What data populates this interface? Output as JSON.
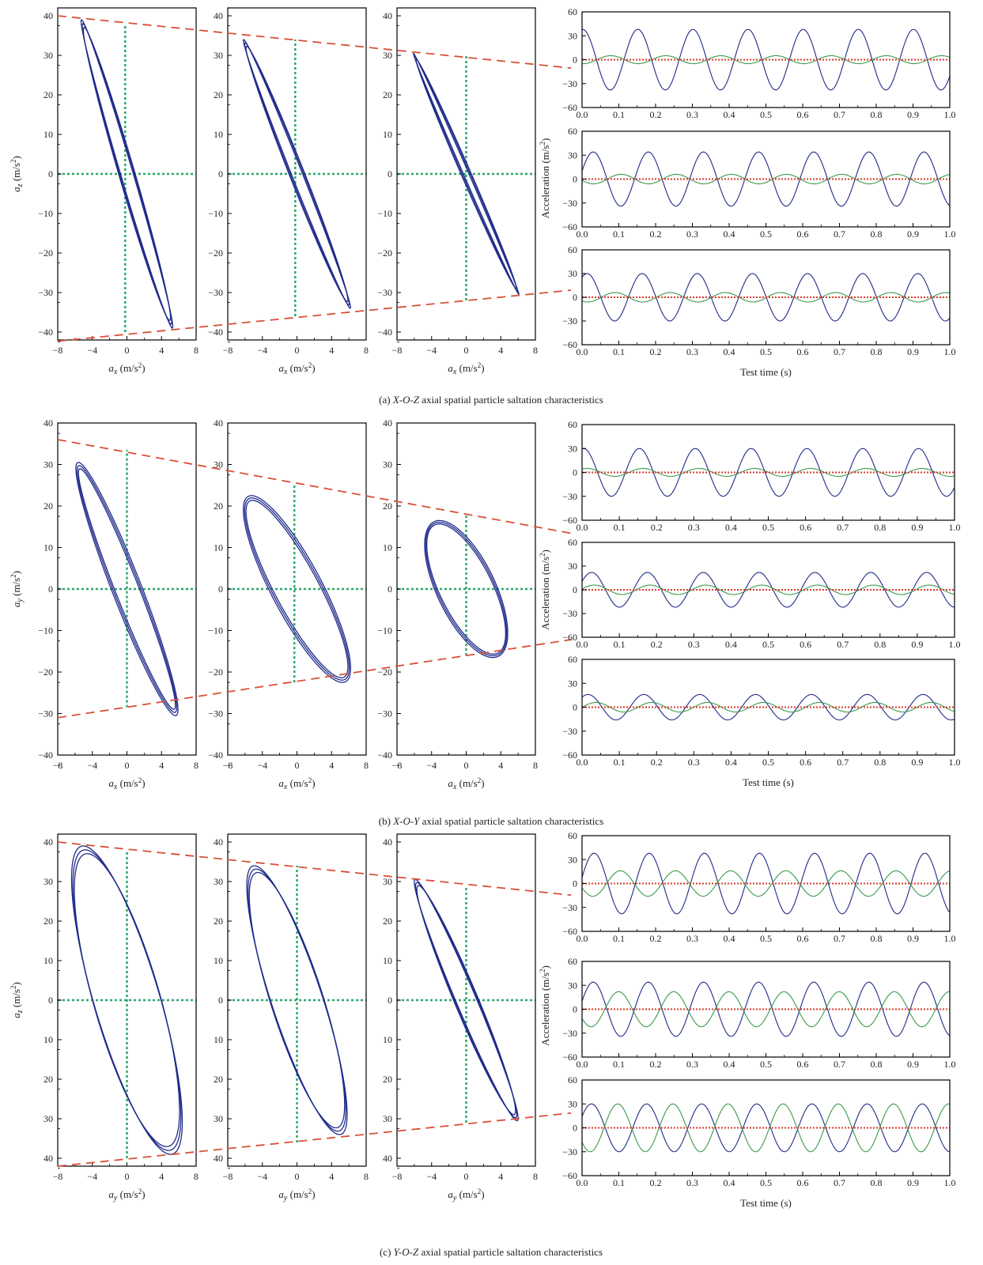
{
  "figure": {
    "captions": [
      "(a) X-O-Z axial spatial particle saltation characteristics",
      "(b) X-O-Y axial spatial particle saltation characteristics",
      "(c) Y-O-Z axial spatial particle saltation characteristics"
    ],
    "caption_parts": [
      {
        "prefix": "(a) ",
        "axes": "X-O-Z",
        "suffix": " axial spatial particle saltation characteristics"
      },
      {
        "prefix": "(b) ",
        "axes": "X-O-Y",
        "suffix": " axial spatial particle saltation characteristics"
      },
      {
        "prefix": "(c) ",
        "axes": "Y-O-Z",
        "suffix": " axial spatial particle saltation characteristics"
      }
    ],
    "colors": {
      "trajectory": "#1f2b8a",
      "envelope": "#d9503a",
      "zero_grid": "#2aa86a",
      "series_green": "#3a9a4a",
      "series_red": "#d43a2a",
      "axis": "#000000"
    }
  },
  "chart_data": [
    {
      "panel": "a",
      "type": "scatter",
      "subtype": "phase-trajectory",
      "x_axis": "a_x",
      "y_axis": "a_z",
      "xlabel": "ax (m/s2)",
      "ylabel": "az (m/s2)",
      "xlim": [
        -8,
        8
      ],
      "ylim": [
        -42,
        42
      ],
      "xticks": [
        -8,
        -4,
        0,
        4,
        8
      ],
      "yticks": [
        40,
        30,
        20,
        10,
        0,
        -10,
        -20,
        -30,
        -40
      ],
      "subplots": [
        {
          "show_ylabel": true,
          "x_amp": 5.3,
          "y_amp": 39,
          "phase_deg": 8,
          "green_h": [
            [
              -8,
              0
            ],
            [
              8,
              0
            ]
          ],
          "green_v": [
            [
              -0.2,
              -40
            ],
            [
              -0.2,
              38
            ]
          ]
        },
        {
          "show_ylabel": false,
          "x_amp": 6.2,
          "y_amp": 34,
          "phase_deg": 6,
          "green_h": [
            [
              -8,
              0
            ],
            [
              8,
              0
            ]
          ],
          "green_v": [
            [
              -0.2,
              -36
            ],
            [
              -0.2,
              34
            ]
          ]
        },
        {
          "show_ylabel": false,
          "x_amp": 6.1,
          "y_amp": 30.5,
          "phase_deg": 3,
          "green_h": [
            [
              -8,
              0
            ],
            [
              8,
              0
            ]
          ],
          "green_v": [
            [
              0,
              -32
            ],
            [
              0,
              30
            ]
          ]
        }
      ],
      "envelope_lines": [
        {
          "points": [
            [
              -8,
              40
            ],
            [
              8,
              27.7
            ]
          ],
          "note": "upper envelope spanning subplots 1-3"
        },
        {
          "points": [
            [
              -8,
              -42.3
            ],
            [
              8,
              -30.3
            ]
          ],
          "note": "lower envelope spanning subplots 1-3"
        }
      ]
    },
    {
      "panel": "a",
      "type": "line",
      "subtype": "time-series",
      "xlabel": "Test time (s)",
      "ylabel": "Acceleration (m/s2)",
      "xlim": [
        0,
        1
      ],
      "ylim": [
        -60,
        60
      ],
      "xticks": [
        0,
        0.1,
        0.2,
        0.3,
        0.4,
        0.5,
        0.6,
        0.7,
        0.8,
        0.9,
        1.0
      ],
      "yticks": [
        60,
        30,
        0,
        -30,
        -60
      ],
      "subplots": [
        {
          "freq_hz": 6.67,
          "series": [
            {
              "color": "blue",
              "amplitude": 38,
              "phase": 1.5
            },
            {
              "color": "green",
              "amplitude": 5,
              "phase": -1.7
            },
            {
              "color": "red",
              "amplitude": 0,
              "phase": 0
            }
          ]
        },
        {
          "freq_hz": 6.67,
          "series": [
            {
              "color": "blue",
              "amplitude": 34,
              "phase": 0.3
            },
            {
              "color": "green",
              "amplitude": 6,
              "phase": 3.4
            },
            {
              "color": "red",
              "amplitude": 0,
              "phase": 0
            }
          ]
        },
        {
          "freq_hz": 6.67,
          "series": [
            {
              "color": "blue",
              "amplitude": 30,
              "phase": 1.0
            },
            {
              "color": "green",
              "amplitude": 6,
              "phase": -2.2
            },
            {
              "color": "red",
              "amplitude": 0,
              "phase": 0
            }
          ]
        }
      ]
    },
    {
      "panel": "b",
      "type": "scatter",
      "subtype": "phase-trajectory",
      "x_axis": "a_x",
      "y_axis": "a_y",
      "xlabel": "ax (m/s2)",
      "ylabel": "ay (m/s2)",
      "xlim": [
        -8,
        8
      ],
      "ylim": [
        -40,
        40
      ],
      "xticks": [
        -8,
        -4,
        0,
        4,
        8
      ],
      "yticks": [
        40,
        30,
        20,
        10,
        0,
        -10,
        -20,
        -30,
        -40
      ],
      "subplots": [
        {
          "show_ylabel": true,
          "x_amp": 5.9,
          "y_amp": 30.5,
          "phase_deg": -18,
          "green_h": [
            [
              -8,
              0
            ],
            [
              8,
              0
            ]
          ],
          "green_v": [
            [
              0,
              -28.5
            ],
            [
              0,
              33.5
            ]
          ]
        },
        {
          "show_ylabel": false,
          "x_amp": 6.2,
          "y_amp": 22.5,
          "phase_deg": -32,
          "green_h": [
            [
              -8,
              0
            ],
            [
              8,
              0
            ]
          ],
          "green_v": [
            [
              -0.3,
              -22.5
            ],
            [
              -0.3,
              25.5
            ]
          ]
        },
        {
          "show_ylabel": false,
          "x_amp": 4.8,
          "y_amp": 16.5,
          "phase_deg": -50,
          "green_h": [
            [
              -8,
              0
            ],
            [
              8,
              0
            ]
          ],
          "green_v": [
            [
              0,
              -16
            ],
            [
              0,
              18
            ]
          ]
        }
      ],
      "envelope_lines": [
        {
          "points": [
            [
              -8,
              36
            ],
            [
              8,
              15
            ]
          ],
          "note": "upper envelope"
        },
        {
          "points": [
            [
              -8,
              -31
            ],
            [
              8,
              -13.5
            ]
          ],
          "note": "lower envelope"
        }
      ]
    },
    {
      "panel": "b",
      "type": "line",
      "subtype": "time-series",
      "xlabel": "Test time (s)",
      "ylabel": "Acceleration (m/s2)",
      "xlim": [
        0,
        1
      ],
      "ylim": [
        -60,
        60
      ],
      "xticks": [
        0,
        0.1,
        0.2,
        0.3,
        0.4,
        0.5,
        0.6,
        0.7,
        0.8,
        0.9,
        1.0
      ],
      "yticks": [
        60,
        30,
        0,
        -30,
        -60
      ],
      "subplots": [
        {
          "freq_hz": 6.67,
          "series": [
            {
              "color": "blue",
              "amplitude": 30,
              "phase": 1.4
            },
            {
              "color": "green",
              "amplitude": 5,
              "phase": 1.0
            },
            {
              "color": "red",
              "amplitude": 0,
              "phase": 0
            }
          ]
        },
        {
          "freq_hz": 6.67,
          "series": [
            {
              "color": "blue",
              "amplitude": 22,
              "phase": 0.5
            },
            {
              "color": "green",
              "amplitude": 6,
              "phase": 0.2
            },
            {
              "color": "red",
              "amplitude": 0,
              "phase": 0
            }
          ]
        },
        {
          "freq_hz": 6.67,
          "series": [
            {
              "color": "blue",
              "amplitude": 16,
              "phase": 0.9
            },
            {
              "color": "green",
              "amplitude": 6,
              "phase": 0.0
            },
            {
              "color": "red",
              "amplitude": 0,
              "phase": 0
            }
          ]
        }
      ]
    },
    {
      "panel": "c",
      "type": "scatter",
      "subtype": "phase-trajectory",
      "x_axis": "a_y",
      "y_axis": "a_z",
      "xlabel": "ay (m/s2)",
      "ylabel": "az (m/s2)",
      "xlim": [
        -8,
        8
      ],
      "ylim": [
        -42,
        42
      ],
      "xticks": [
        -8,
        -4,
        0,
        4,
        8
      ],
      "yticks": [
        40,
        30,
        20,
        10,
        0,
        10,
        20,
        30,
        40
      ],
      "subplots": [
        {
          "show_ylabel": true,
          "x_amp": 6.4,
          "y_amp": 39,
          "phase_deg": 38,
          "green_h": [
            [
              -8,
              0
            ],
            [
              8,
              0
            ]
          ],
          "green_v": [
            [
              0,
              -40
            ],
            [
              0,
              38
            ]
          ]
        },
        {
          "show_ylabel": false,
          "x_amp": 5.8,
          "y_amp": 34,
          "phase_deg": 32,
          "green_h": [
            [
              -8,
              0
            ],
            [
              8,
              0
            ]
          ],
          "green_v": [
            [
              0,
              -36
            ],
            [
              0,
              34
            ]
          ]
        },
        {
          "show_ylabel": false,
          "x_amp": 6.0,
          "y_amp": 30.5,
          "phase_deg": 12,
          "green_h": [
            [
              -8,
              0
            ],
            [
              8,
              0
            ]
          ],
          "green_v": [
            [
              0,
              -31
            ],
            [
              0,
              29
            ]
          ]
        }
      ],
      "envelope_lines": [
        {
          "points": [
            [
              -8,
              40
            ],
            [
              8,
              27.5
            ]
          ],
          "note": "upper envelope"
        },
        {
          "points": [
            [
              -8,
              -42
            ],
            [
              8,
              -29.5
            ]
          ],
          "note": "lower envelope"
        }
      ]
    },
    {
      "panel": "c",
      "type": "line",
      "subtype": "time-series",
      "xlabel": "Test time (s)",
      "ylabel": "Acceleration (m/s2)",
      "xlim": [
        0,
        1
      ],
      "ylim": [
        -60,
        60
      ],
      "xticks": [
        0,
        0.1,
        0.2,
        0.3,
        0.4,
        0.5,
        0.6,
        0.7,
        0.8,
        0.9,
        1.0
      ],
      "yticks": [
        60,
        30,
        0,
        -30,
        -60
      ],
      "subplots": [
        {
          "freq_hz": 6.67,
          "series": [
            {
              "color": "blue",
              "amplitude": 38,
              "phase": 0.2
            },
            {
              "color": "green",
              "amplitude": 16,
              "phase": -2.8
            },
            {
              "color": "red",
              "amplitude": 0,
              "phase": 0
            }
          ]
        },
        {
          "freq_hz": 6.67,
          "series": [
            {
              "color": "blue",
              "amplitude": 34,
              "phase": 0.3
            },
            {
              "color": "green",
              "amplitude": 22,
              "phase": -2.6
            },
            {
              "color": "red",
              "amplitude": 0,
              "phase": 0
            }
          ]
        },
        {
          "freq_hz": 6.67,
          "series": [
            {
              "color": "blue",
              "amplitude": 30,
              "phase": 0.5
            },
            {
              "color": "green",
              "amplitude": 30,
              "phase": -2.5
            },
            {
              "color": "red",
              "amplitude": 0,
              "phase": 0
            }
          ]
        }
      ]
    }
  ]
}
